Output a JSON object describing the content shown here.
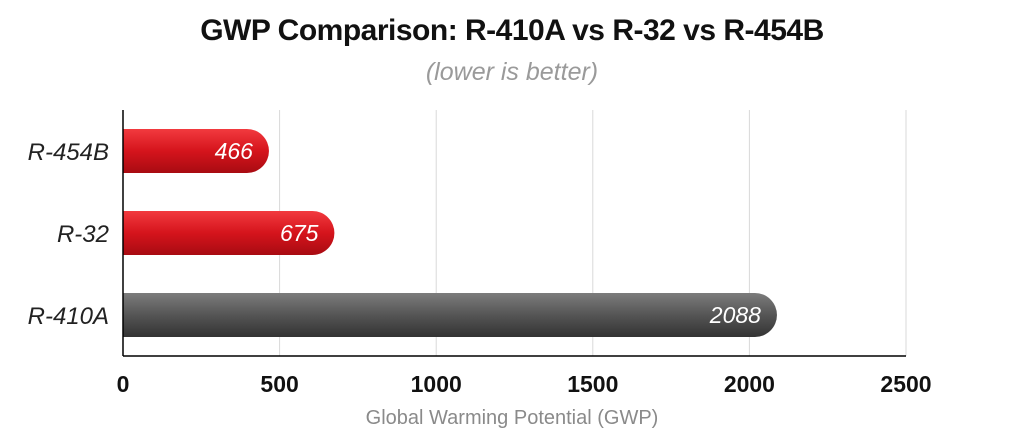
{
  "chart_data": {
    "type": "bar",
    "orientation": "horizontal",
    "title": "GWP Comparison: R-410A vs R-32 vs R-454B",
    "subtitle": "(lower is better)",
    "xlabel": "Global Warming Potential (GWP)",
    "ylabel": "",
    "categories": [
      "R-454B",
      "R-32",
      "R-410A"
    ],
    "values": [
      466,
      675,
      2088
    ],
    "value_labels": [
      "466",
      "675",
      "2088"
    ],
    "colors": [
      "#d9141c",
      "#d9141c",
      "#555555"
    ],
    "xlim": [
      0,
      2500
    ],
    "xticks": [
      0,
      500,
      1000,
      1500,
      2000,
      2500
    ],
    "xtick_labels": [
      "0",
      "500",
      "1000",
      "1500",
      "2000",
      "2500"
    ],
    "grid": true
  }
}
